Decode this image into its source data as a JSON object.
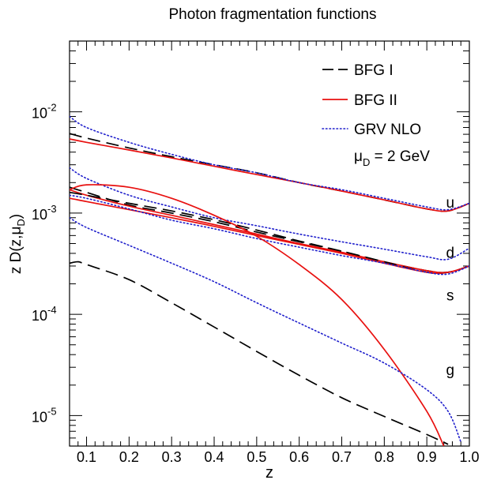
{
  "chart_data": {
    "type": "line",
    "title": "Photon fragmentation functions",
    "xlabel": "z",
    "ylabel": "z D(z,μ",
    "ylabel_sub": "D",
    "ylabel_close": ")",
    "xlim": [
      0.06,
      1.0
    ],
    "ylim": [
      5e-06,
      0.05
    ],
    "yscale": "log",
    "grid": false,
    "legend_position": "top-right",
    "x_ticks": [
      {
        "value": 0.1,
        "label": "0.1"
      },
      {
        "value": 0.2,
        "label": "0.2"
      },
      {
        "value": 0.3,
        "label": "0.3"
      },
      {
        "value": 0.4,
        "label": "0.4"
      },
      {
        "value": 0.5,
        "label": "0.5"
      },
      {
        "value": 0.6,
        "label": "0.6"
      },
      {
        "value": 0.7,
        "label": "0.7"
      },
      {
        "value": 0.8,
        "label": "0.8"
      },
      {
        "value": 0.9,
        "label": "0.9"
      },
      {
        "value": 1.0,
        "label": "1.0"
      }
    ],
    "y_ticks": [
      {
        "value": 1e-05,
        "base": "10",
        "exp": "-5"
      },
      {
        "value": 0.0001,
        "base": "10",
        "exp": "-4"
      },
      {
        "value": 0.001,
        "base": "10",
        "exp": "-3"
      },
      {
        "value": 0.01,
        "base": "10",
        "exp": "-2"
      }
    ],
    "legend_entries": [
      {
        "label": "BFG I",
        "color": "#000000",
        "dash": "long-dash"
      },
      {
        "label": "BFG II",
        "color": "#e8100f",
        "dash": "solid"
      },
      {
        "label": "GRV NLO",
        "color": "#1f1fcc",
        "dash": "dotted"
      }
    ],
    "scale_annotation": {
      "mu": "μ",
      "sub": "D",
      "rest": " = 2 GeV"
    },
    "curve_labels": [
      {
        "text": "u",
        "x": 0.955,
        "y": 0.00128
      },
      {
        "text": "d",
        "x": 0.955,
        "y": 0.00041
      },
      {
        "text": "s",
        "x": 0.955,
        "y": 0.000155
      },
      {
        "text": "g",
        "x": 0.955,
        "y": 2.85e-05
      }
    ],
    "series": [
      {
        "name": "BFG I",
        "flavor": "u",
        "color": "#000000",
        "dash": "long-dash",
        "x": [
          0.06,
          0.1,
          0.2,
          0.3,
          0.4,
          0.5,
          0.6,
          0.7,
          0.8,
          0.9,
          0.95,
          1.0
        ],
        "y": [
          0.0061,
          0.0055,
          0.0044,
          0.0036,
          0.003,
          0.0025,
          0.002,
          0.00165,
          0.00135,
          0.0011,
          0.00105,
          0.00125
        ]
      },
      {
        "name": "BFG II",
        "flavor": "u",
        "color": "#e8100f",
        "dash": "solid",
        "x": [
          0.06,
          0.1,
          0.2,
          0.3,
          0.4,
          0.5,
          0.6,
          0.7,
          0.8,
          0.9,
          0.95,
          1.0
        ],
        "y": [
          0.0054,
          0.005,
          0.0042,
          0.0035,
          0.0029,
          0.0024,
          0.002,
          0.00165,
          0.00135,
          0.0011,
          0.00105,
          0.00125
        ]
      },
      {
        "name": "GRV NLO",
        "flavor": "u",
        "color": "#1f1fcc",
        "dash": "dotted",
        "x": [
          0.06,
          0.1,
          0.2,
          0.3,
          0.4,
          0.5,
          0.6,
          0.7,
          0.8,
          0.9,
          0.95,
          1.0
        ],
        "y": [
          0.009,
          0.007,
          0.005,
          0.0038,
          0.003,
          0.0025,
          0.002,
          0.0017,
          0.0014,
          0.00115,
          0.00108,
          0.00125
        ]
      },
      {
        "name": "BFG I",
        "flavor": "d",
        "color": "#000000",
        "dash": "long-dash",
        "x": [
          0.06,
          0.1,
          0.2,
          0.3,
          0.4,
          0.5,
          0.6,
          0.7,
          0.8,
          0.9,
          0.95,
          1.0
        ],
        "y": [
          0.0018,
          0.0016,
          0.0012,
          0.001,
          0.00082,
          0.00065,
          0.00052,
          0.00042,
          0.00033,
          0.00027,
          0.00026,
          0.0003
        ]
      },
      {
        "name": "BFG II",
        "flavor": "d",
        "color": "#e8100f",
        "dash": "solid",
        "x": [
          0.06,
          0.1,
          0.2,
          0.3,
          0.4,
          0.5,
          0.6,
          0.7,
          0.8,
          0.9,
          0.95,
          1.0
        ],
        "y": [
          0.0017,
          0.0015,
          0.00117,
          0.00095,
          0.00077,
          0.00062,
          0.0005,
          0.00041,
          0.00033,
          0.00027,
          0.00026,
          0.0003
        ]
      },
      {
        "name": "GRV NLO",
        "flavor": "d",
        "color": "#1f1fcc",
        "dash": "dotted",
        "x": [
          0.06,
          0.1,
          0.2,
          0.3,
          0.4,
          0.5,
          0.6,
          0.7,
          0.8,
          0.9,
          0.95,
          1.0
        ],
        "y": [
          0.0028,
          0.0022,
          0.0015,
          0.00115,
          0.0009,
          0.00075,
          0.00062,
          0.00052,
          0.00044,
          0.00037,
          0.00035,
          0.00045
        ]
      },
      {
        "name": "BFG I",
        "flavor": "s",
        "color": "#000000",
        "dash": "long-dash",
        "x": [
          0.06,
          0.1,
          0.2,
          0.3,
          0.4,
          0.5,
          0.6,
          0.7,
          0.8,
          0.9,
          0.95,
          1.0
        ],
        "y": [
          0.0016,
          0.0015,
          0.00125,
          0.00105,
          0.00086,
          0.00068,
          0.00053,
          0.00042,
          0.00033,
          0.00026,
          0.00026,
          0.0003
        ]
      },
      {
        "name": "BFG II",
        "flavor": "s",
        "color": "#e8100f",
        "dash": "solid",
        "x": [
          0.06,
          0.1,
          0.2,
          0.3,
          0.4,
          0.5,
          0.6,
          0.7,
          0.8,
          0.9,
          0.95,
          1.0
        ],
        "y": [
          0.0014,
          0.0013,
          0.00108,
          0.0009,
          0.00074,
          0.0006,
          0.00049,
          0.0004,
          0.00032,
          0.00026,
          0.00026,
          0.0003
        ]
      },
      {
        "name": "GRV NLO",
        "flavor": "s",
        "color": "#1f1fcc",
        "dash": "dotted",
        "x": [
          0.06,
          0.1,
          0.2,
          0.3,
          0.4,
          0.5,
          0.6,
          0.7,
          0.8,
          0.9,
          0.95,
          1.0
        ],
        "y": [
          0.0015,
          0.0014,
          0.0011,
          0.00085,
          0.0007,
          0.00056,
          0.00046,
          0.00038,
          0.00032,
          0.00026,
          0.00025,
          0.0003
        ]
      },
      {
        "name": "BFG I",
        "flavor": "g",
        "color": "#000000",
        "dash": "long-dash",
        "x": [
          0.06,
          0.08,
          0.1,
          0.2,
          0.3,
          0.4,
          0.5,
          0.6,
          0.7,
          0.8,
          0.9,
          0.95
        ],
        "y": [
          0.00032,
          0.00033,
          0.00031,
          0.00022,
          0.00013,
          7.5e-05,
          4.3e-05,
          2.5e-05,
          1.5e-05,
          9.8e-06,
          6.5e-06,
          5.2e-06
        ]
      },
      {
        "name": "BFG II",
        "flavor": "g",
        "color": "#e8100f",
        "dash": "solid",
        "x": [
          0.06,
          0.1,
          0.2,
          0.3,
          0.4,
          0.5,
          0.6,
          0.7,
          0.8,
          0.9,
          0.94
        ],
        "y": [
          0.0017,
          0.0019,
          0.0018,
          0.0014,
          0.00095,
          0.00059,
          0.00031,
          0.00014,
          4.5e-05,
          1.1e-05,
          5e-06
        ]
      },
      {
        "name": "GRV NLO",
        "flavor": "g",
        "color": "#1f1fcc",
        "dash": "dotted",
        "x": [
          0.06,
          0.1,
          0.2,
          0.3,
          0.4,
          0.5,
          0.6,
          0.7,
          0.8,
          0.9,
          0.95,
          0.98
        ],
        "y": [
          0.0009,
          0.00072,
          0.00048,
          0.00032,
          0.00021,
          0.00013,
          8.2e-05,
          5.2e-05,
          3.3e-05,
          1.8e-05,
          1.1e-05,
          5.5e-06
        ]
      }
    ]
  }
}
